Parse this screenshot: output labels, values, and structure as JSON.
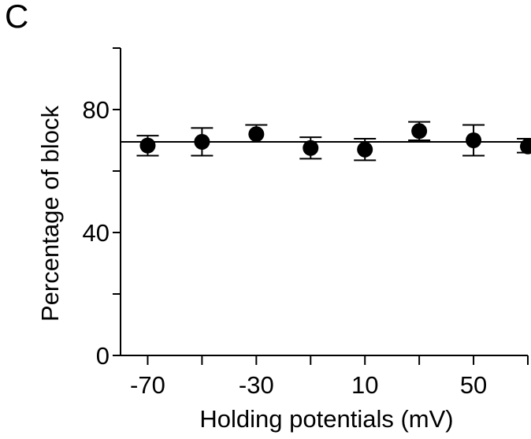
{
  "panel_label": "C",
  "chart_data": {
    "type": "scatter",
    "title": "",
    "xlabel": "Holding potentials (mV)",
    "ylabel": "Percentage of block",
    "xlim": [
      -80,
      70
    ],
    "ylim": [
      0,
      100
    ],
    "x_ticks": [
      -70,
      -50,
      -30,
      -10,
      10,
      30,
      50,
      70
    ],
    "x_tick_labels": [
      "-70",
      "",
      "-30",
      "",
      "10",
      "",
      "50",
      ""
    ],
    "y_ticks": [
      0,
      20,
      40,
      60,
      80,
      100
    ],
    "y_tick_labels": [
      "0",
      "",
      "40",
      "",
      "80",
      ""
    ],
    "grid": false,
    "reference_line": {
      "y": 69.5
    },
    "series": [
      {
        "x": [
          -70,
          -50,
          -30,
          -10,
          10,
          30,
          50,
          70
        ],
        "y": [
          68.3,
          69.5,
          72.0,
          67.5,
          67.0,
          73.0,
          70.0,
          68.0
        ],
        "error_low": [
          65.0,
          65.0,
          69.5,
          64.0,
          63.5,
          70.0,
          65.0,
          66.0
        ],
        "error_high": [
          71.5,
          74.0,
          75.0,
          71.0,
          70.5,
          76.0,
          75.0,
          70.5
        ]
      }
    ],
    "color": "#000000"
  }
}
